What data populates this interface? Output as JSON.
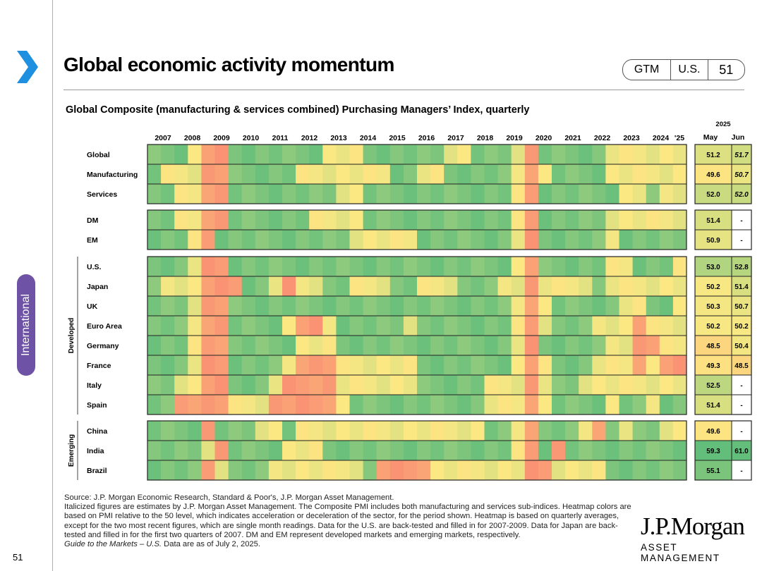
{
  "header": {
    "title": "Global economic activity momentum",
    "badge": [
      "GTM",
      "U.S.",
      "51"
    ],
    "section_tab": "International",
    "page_number": "51"
  },
  "footer": {
    "source_line": "Source: J.P. Morgan Economic Research, Standard & Poor's, J.P. Morgan Asset Management.",
    "notes": "Italicized figures are estimates by J.P. Morgan Asset Management. The Composite PMI includes both manufacturing and services sub-indices. Heatmap colors are based on PMI relative to the 50 level, which indicates acceleration or deceleration of the sector, for the period shown. Heatmap is based on quarterly averages, except for the two most recent figures, which are single month readings. Data for the U.S. are back-tested and filled in for 2007-2009. Data for Japan are back-tested and filled in for the first two quarters of 2007. DM and EM represent developed markets and emerging markets, respectively.",
    "guide_title": "Guide to the Markets – U.S.",
    "guide_date": " Data are as of July 2, 2025."
  },
  "logo": {
    "brand": "J.P.Morgan",
    "sub": "ASSET MANAGEMENT"
  },
  "colors": {
    "red": "#f8696b",
    "yellow": "#fce983",
    "green": "#63be7b",
    "sidebar": "#6d52a5"
  },
  "chart_data": {
    "type": "heatmap",
    "title": "Global Composite (manufacturing & services combined) Purchasing Managers’ Index, quarterly",
    "x_labels": [
      "2007",
      "2008",
      "2009",
      "2010",
      "2011",
      "2012",
      "2013",
      "2014",
      "2015",
      "2016",
      "2017",
      "2018",
      "2019",
      "2020",
      "2021",
      "2022",
      "2023",
      "2024",
      "'25"
    ],
    "latest_header": {
      "year": "2025",
      "months": [
        "May",
        "Jun"
      ]
    },
    "color_scale": {
      "min": 40,
      "mid": 50,
      "max": 56
    },
    "group_labels": [
      "Developed",
      "Emerging"
    ],
    "groups": [
      {
        "label": "",
        "rows": [
          {
            "name": "Global",
            "seq": "GGGYRRGGGGGGGYYYGGGGGGYYGGGYRGGGGGYYYYYY",
            "latest": [
              "51.2",
              "51.7"
            ],
            "estimated": [
              false,
              true
            ]
          },
          {
            "name": "Manufacturing",
            "seq": "GYYYRRGGGGGYYYYYYYGGYYGGGGGYRYGGGGYYYYYY",
            "latest": [
              "49.6",
              "50.7"
            ],
            "estimated": [
              false,
              true
            ]
          },
          {
            "name": "Services",
            "seq": "GGYYRRGGGGGGGGYYGGGGGGGGGGGYRGGGGGGYYGYY",
            "latest": [
              "52.0",
              "52.0"
            ],
            "estimated": [
              false,
              true
            ]
          }
        ]
      },
      {
        "label": "",
        "rows": [
          {
            "name": "DM",
            "seq": "GGYYRRGGGGGGYYYYGGGGGGGGGGGYRGGGGGYYYYYY",
            "latest": [
              "51.4",
              "-"
            ],
            "estimated": [
              false,
              false
            ]
          },
          {
            "name": "EM",
            "seq": "GGGYRGGGGGGGGGGYYYYYGGGGGGGYRGGGGGYGGGGG",
            "latest": [
              "50.9",
              "-"
            ],
            "estimated": [
              false,
              false
            ]
          }
        ]
      },
      {
        "label": "Developed",
        "rows": [
          {
            "name": "U.S.",
            "seq": "GGGYRRGGGGGGGGGGGGGGGGGGGGGYRGGGGGYYGGGY",
            "latest": [
              "53.0",
              "52.8"
            ],
            "estimated": [
              false,
              false
            ]
          },
          {
            "name": "Japan",
            "seq": "GYYYRRRGGYRYYGGYYYGGYYYGGGYYRYYYYGYYYYYY",
            "latest": [
              "50.2",
              "51.4"
            ],
            "estimated": [
              false,
              false
            ]
          },
          {
            "name": "UK",
            "seq": "GGGYRRGGGGGGGGGGGGGGGGGGGGGYRYGGGGGYYGGY",
            "latest": [
              "50.3",
              "50.7"
            ],
            "estimated": [
              false,
              false
            ]
          },
          {
            "name": "Euro Area",
            "seq": "GGGYRRGGGGYRRYGGGGGYGGGGGGGYRYGGGYYYRYYY",
            "latest": [
              "50.2",
              "50.2"
            ],
            "estimated": [
              false,
              false
            ]
          },
          {
            "name": "Germany",
            "seq": "GGGYRRGGGGGYYYGGGGGGGGGGGGGYRGGGGGYYRRYY",
            "latest": [
              "48.5",
              "50.4"
            ],
            "estimated": [
              false,
              false
            ]
          },
          {
            "name": "France",
            "seq": "GGGYRRGGGGYRRRYYYYYYGGGGGGGYRYGGGYYYRYRR",
            "latest": [
              "49.3",
              "48.5"
            ],
            "estimated": [
              false,
              false
            ]
          },
          {
            "name": "Italy",
            "seq": "GGYYRRGGGYRRRRYYYYYYGGGGGYYYRYGGYYYYYYYY",
            "latest": [
              "52.5",
              "-"
            ],
            "estimated": [
              false,
              false
            ]
          },
          {
            "name": "Spain",
            "seq": "GGRRRRYYYRRRRRYGGGGGGGGGGYYYRYGGGGYGGYGG",
            "latest": [
              "51.4",
              "-"
            ],
            "estimated": [
              false,
              false
            ]
          }
        ]
      },
      {
        "label": "Emerging",
        "rows": [
          {
            "name": "China",
            "seq": "GGGGRGGGYYGYYYYYYYYYYYYYYGGYRGGGYRGYGGYY",
            "latest": [
              "49.6",
              "-"
            ],
            "estimated": [
              false,
              false
            ]
          },
          {
            "name": "India",
            "seq": "GGGGYRGGGGYYYGGGGGGGGGGGGGGYRGRGGGGGGGGG",
            "latest": [
              "59.3",
              "61.0"
            ],
            "estimated": [
              false,
              false
            ]
          },
          {
            "name": "Brazil",
            "seq": "GGGGRYGGGYYYYYYYGRRRRYYYYYYYRRYYYYGGGGGG",
            "latest": [
              "55.1",
              "-"
            ],
            "estimated": [
              false,
              false
            ]
          }
        ]
      }
    ]
  }
}
